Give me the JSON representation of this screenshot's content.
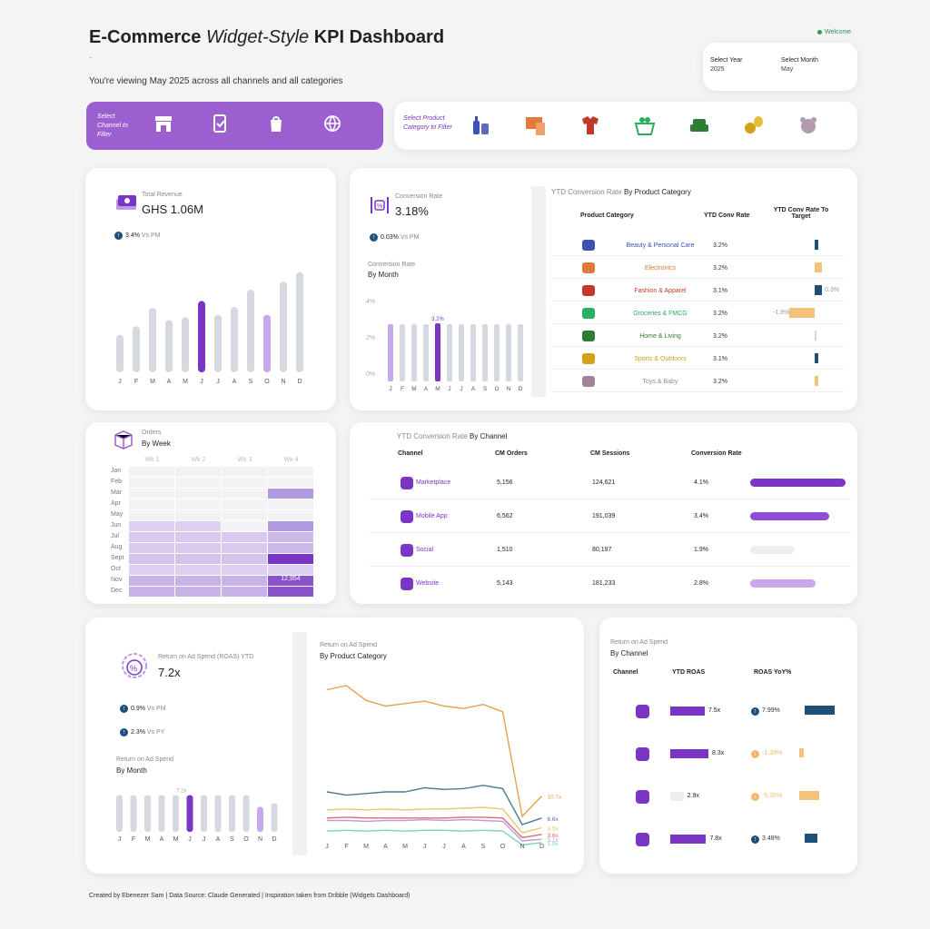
{
  "header": {
    "title_a": "E-Commerce ",
    "title_b": "Widget-Style",
    "title_c": " KPI Dashboard",
    "dash": "-",
    "subtitle": "You're viewing May 2025 across all channels and all categories",
    "welcome": "Welcome"
  },
  "filters": {
    "year_label": "Select Year",
    "year_value": "2025",
    "month_label": "Select Month",
    "month_value": "May",
    "channel_label": "Select Channel to Filter",
    "category_label": "Select Product Category to Filter"
  },
  "revenue": {
    "label": "Total Revenue",
    "value": "GHS 1.06M",
    "delta": "3.4%",
    "delta_ref": "Vs PM",
    "months": [
      "J",
      "F",
      "M",
      "A",
      "M",
      "J",
      "J",
      "A",
      "S",
      "O",
      "N",
      "D"
    ],
    "values": [
      43,
      53,
      74,
      60,
      63,
      82,
      66,
      75,
      95,
      66,
      104,
      115
    ],
    "highlight_index": 5
  },
  "conversion": {
    "label": "Conversion Rate",
    "value": "3.18%",
    "delta": "0.03%",
    "delta_ref": "Vs PM",
    "chart_label": "Conversion Rate",
    "chart_sub": "By Month",
    "y_ticks": [
      "4%",
      "2%",
      "0%"
    ],
    "peak_label": "3.2%",
    "months": [
      "J",
      "F",
      "M",
      "A",
      "M",
      "J",
      "J",
      "A",
      "S",
      "O",
      "N",
      "D"
    ],
    "values": [
      3.15,
      3.15,
      3.15,
      3.15,
      3.2,
      3.15,
      3.15,
      3.15,
      3.15,
      3.15,
      3.15,
      3.15
    ],
    "highlight_index": 4
  },
  "cat_table": {
    "title_a": "YTD Conversion Rate ",
    "title_b": "By Product Category",
    "headers": [
      "Product Category",
      "YTD Conv Rate",
      "YTD Conv Rate To Target"
    ],
    "rows": [
      {
        "name": "Beauty & Personal Care",
        "rate": "3.2%",
        "color": "#3f51b5",
        "target": "",
        "tcolor": "#1f4e79",
        "tval": 1
      },
      {
        "name": "Electronics",
        "rate": "3.2%",
        "color": "#e07b39",
        "target": "",
        "tcolor": "#f4c27a",
        "tval": 2
      },
      {
        "name": "Fashion & Apparel",
        "rate": "3.1%",
        "color": "#c0392b",
        "target": "0.3%",
        "tcolor": "#1f4e79",
        "tval": 2
      },
      {
        "name": "Groceries & FMCG",
        "rate": "3.2%",
        "color": "#27ae60",
        "target": "-1.8%",
        "tcolor": "#f4c27a",
        "tval": -7
      },
      {
        "name": "Home & Living",
        "rate": "3.2%",
        "color": "#2e7d32",
        "target": "",
        "tcolor": "#cfd8dc",
        "tval": 0.3
      },
      {
        "name": "Sports & Outdoors",
        "rate": "3.1%",
        "color": "#d4a017",
        "target": "",
        "tcolor": "#1f4e79",
        "tval": 1
      },
      {
        "name": "Toys & Baby",
        "rate": "3.2%",
        "color": "#a0849a",
        "target": "",
        "tcolor": "#f4c27a",
        "tval": 1
      }
    ]
  },
  "orders": {
    "label": "Orders",
    "sub": "By Week",
    "weeks": [
      "Wk 1",
      "Wk 2",
      "Wk 3",
      "Wk 4"
    ],
    "months": [
      "Jan",
      "Feb",
      "Mar",
      "Apr",
      "May",
      "Jun",
      "Jul",
      "Aug",
      "Sept",
      "Oct",
      "Nov",
      "Dec"
    ],
    "peak_label": "12,954"
  },
  "channel_table": {
    "title_a": "YTD Conversion Rate ",
    "title_b": "By Channel",
    "headers": [
      "Channel",
      "CM Orders",
      "CM Sessions",
      "Conversion Rate"
    ],
    "rows": [
      {
        "name": "Marketplace",
        "orders": "5,156",
        "sessions": "124,621",
        "rate": "4.1%",
        "v": 4.1,
        "color": "#7b35c4"
      },
      {
        "name": "Mobile App",
        "orders": "6,562",
        "sessions": "191,039",
        "rate": "3.4%",
        "v": 3.4,
        "color": "#8e4fd6"
      },
      {
        "name": "Social",
        "orders": "1,510",
        "sessions": "80,197",
        "rate": "1.9%",
        "v": 1.9,
        "color": "#eeeeee"
      },
      {
        "name": "Website",
        "orders": "5,143",
        "sessions": "181,233",
        "rate": "2.8%",
        "v": 2.8,
        "color": "#c7a8ea"
      }
    ]
  },
  "roas": {
    "label": "Return on Ad Spend (ROAS) YTD",
    "value": "7.2x",
    "delta1": "0.9%",
    "ref1": "Vs PM",
    "delta2": "2.3%",
    "ref2": "Vs PY",
    "chart_label": "Return on Ad Spend",
    "chart_sub": "By Month",
    "peak_label": "7.2x",
    "months": [
      "J",
      "F",
      "M",
      "A",
      "M",
      "J",
      "J",
      "A",
      "S",
      "O",
      "N",
      "D"
    ],
    "values": [
      7.2,
      7.2,
      7.2,
      7.2,
      7.2,
      7.2,
      7.2,
      7.2,
      7.2,
      7.2,
      4.9,
      5.6
    ],
    "highlight_index": 5
  },
  "roas_cat": {
    "label": "Return on Ad Spend",
    "sub": "By Product Category",
    "months": [
      "J",
      "F",
      "M",
      "A",
      "M",
      "J",
      "J",
      "A",
      "S",
      "O",
      "N",
      "D"
    ],
    "end_labels": [
      "10.7x",
      "6.6x",
      "4.5x",
      "3.6x",
      "3.1x",
      "1.9x"
    ]
  },
  "roas_channel": {
    "label": "Return on Ad Spend",
    "sub": "By Channel",
    "headers": [
      "Channel",
      "YTD ROAS",
      "ROAS YoY%"
    ],
    "rows": [
      {
        "roas": "7.5x",
        "v": 7.5,
        "bar": "#7b35c4",
        "yoy": "7.99%",
        "yv": 7.99,
        "ycol": "#1f4e79",
        "up": true
      },
      {
        "roas": "8.3x",
        "v": 8.3,
        "bar": "#7b35c4",
        "yoy": "-1.33%",
        "yv": 1.33,
        "ycol": "#f4c27a",
        "up": false
      },
      {
        "roas": "2.9x",
        "v": 2.9,
        "bar": "#eeeeee",
        "yoy": "-5.35%",
        "yv": 5.35,
        "ycol": "#f4c27a",
        "up": false
      },
      {
        "roas": "7.8x",
        "v": 7.8,
        "bar": "#7b35c4",
        "yoy": "3.48%",
        "yv": 3.48,
        "ycol": "#1f4e79",
        "up": true
      }
    ]
  },
  "footer": "Created by Ebenezer Sam | Data Source: Claude Generated | Inspiration taken from Dribble (Widgets Dashboard)",
  "colors": {
    "accent": "#7b35c4",
    "accent_light": "#c7a8ea",
    "grey_bar": "#d5d8de",
    "navy": "#1f4e79",
    "amber": "#f4c27a"
  }
}
